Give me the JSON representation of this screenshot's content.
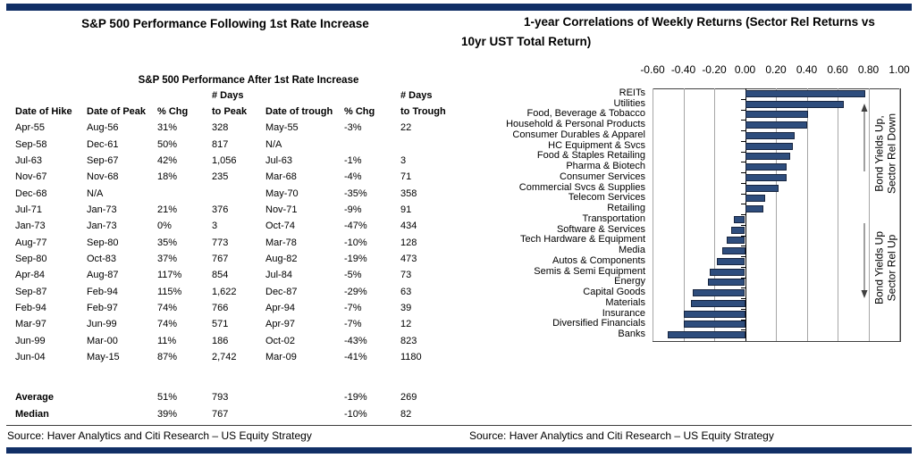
{
  "colors": {
    "accent_navy": "#112f66",
    "bar_fill": "#2e4d7d",
    "bar_border": "#16243f"
  },
  "left_panel": {
    "title": "S&P 500 Performance Following 1st Rate Increase",
    "source": "Source: Haver Analytics and Citi Research – US Equity Strategy",
    "table": {
      "title": "S&P 500 Performance After 1st Rate Increase",
      "headers": [
        {
          "top": "",
          "bottom": "Date of Hike"
        },
        {
          "top": "",
          "bottom": "Date of Peak"
        },
        {
          "top": "",
          "bottom": "% Chg"
        },
        {
          "top": "# Days",
          "bottom": "to Peak"
        },
        {
          "top": "",
          "bottom": "Date of trough"
        },
        {
          "top": "",
          "bottom": "% Chg"
        },
        {
          "top": "# Days",
          "bottom": "to Trough"
        }
      ],
      "rows": [
        [
          "Apr-55",
          "Aug-56",
          "31%",
          "328",
          "May-55",
          "-3%",
          "22"
        ],
        [
          "Sep-58",
          "Dec-61",
          "50%",
          "817",
          "N/A",
          "",
          ""
        ],
        [
          "Jul-63",
          "Sep-67",
          "42%",
          "1,056",
          "Jul-63",
          "-1%",
          "3"
        ],
        [
          "Nov-67",
          "Nov-68",
          "18%",
          "235",
          "Mar-68",
          "-4%",
          "71"
        ],
        [
          "Dec-68",
          "N/A",
          "",
          "",
          "May-70",
          "-35%",
          "358"
        ],
        [
          "Jul-71",
          "Jan-73",
          "21%",
          "376",
          "Nov-71",
          "-9%",
          "91"
        ],
        [
          "Jan-73",
          "Jan-73",
          "0%",
          "3",
          "Oct-74",
          "-47%",
          "434"
        ],
        [
          "Aug-77",
          "Sep-80",
          "35%",
          "773",
          "Mar-78",
          "-10%",
          "128"
        ],
        [
          "Sep-80",
          "Oct-83",
          "37%",
          "767",
          "Aug-82",
          "-19%",
          "473"
        ],
        [
          "Apr-84",
          "Aug-87",
          "117%",
          "854",
          "Jul-84",
          "-5%",
          "73"
        ],
        [
          "Sep-87",
          "Feb-94",
          "115%",
          "1,622",
          "Dec-87",
          "-29%",
          "63"
        ],
        [
          "Feb-94",
          "Feb-97",
          "74%",
          "766",
          "Apr-94",
          "-7%",
          "39"
        ],
        [
          "Mar-97",
          "Jun-99",
          "74%",
          "571",
          "Apr-97",
          "-7%",
          "12"
        ],
        [
          "Jun-99",
          "Mar-00",
          "11%",
          "186",
          "Oct-02",
          "-43%",
          "823"
        ],
        [
          "Jun-04",
          "May-15",
          "87%",
          "2,742",
          "Mar-09",
          "-41%",
          "1180"
        ]
      ],
      "summary_rows": [
        [
          "Average",
          "",
          "51%",
          "793",
          "",
          "-19%",
          "269"
        ],
        [
          "Median",
          "",
          "39%",
          "767",
          "",
          "-10%",
          "82"
        ]
      ]
    }
  },
  "right_panel": {
    "title_line1": "1-year Correlations of Weekly Returns (Sector Rel Returns vs",
    "title_line2": "10yr UST Total Return)",
    "source": "Source: Haver Analytics and Citi Research – US Equity Strategy"
  },
  "chart_data": {
    "type": "bar",
    "orientation": "horizontal",
    "title": "1-year Correlations of Weekly Returns (Sector Rel Returns vs 10yr UST Total Return)",
    "axis_position": "top",
    "grid": true,
    "xlim": [
      -0.6,
      1.0
    ],
    "xtick_values": [
      -0.6,
      -0.4,
      -0.2,
      0.0,
      0.2,
      0.4,
      0.6,
      0.8,
      1.0
    ],
    "xtick_labels": [
      "-0.60",
      "-0.40",
      "-0.20",
      "0.00",
      "0.20",
      "0.40",
      "0.60",
      "0.80",
      "1.00"
    ],
    "categories": [
      "REITs",
      "Utilities",
      "Food, Beverage & Tobacco",
      "Household & Personal Products",
      "Consumer Durables & Apparel",
      "HC Equipment & Svcs",
      "Food & Staples Retailing",
      "Pharma & Biotech",
      "Consumer Services",
      "Commercial Svcs & Supplies",
      "Telecom Services",
      "Retailing",
      "Transportation",
      "Software & Services",
      "Tech Hardware & Equipment",
      "Media",
      "Autos & Components",
      "Semis & Semi Equipment",
      "Energy",
      "Capital Goods",
      "Materials",
      "Insurance",
      "Diversified Financials",
      "Banks"
    ],
    "values": [
      0.78,
      0.64,
      0.41,
      0.4,
      0.32,
      0.31,
      0.29,
      0.27,
      0.27,
      0.22,
      0.13,
      0.12,
      -0.07,
      -0.09,
      -0.12,
      -0.15,
      -0.18,
      -0.23,
      -0.24,
      -0.34,
      -0.35,
      -0.4,
      -0.4,
      -0.5
    ],
    "bar_color": "#2e4d7d",
    "annotations": [
      {
        "lines": [
          "Bond Yields Up,",
          "Sector Rel Down"
        ],
        "arrow": "up"
      },
      {
        "lines": [
          "Bond Yields Up",
          "Sector Rel Up"
        ],
        "arrow": "down"
      }
    ]
  }
}
